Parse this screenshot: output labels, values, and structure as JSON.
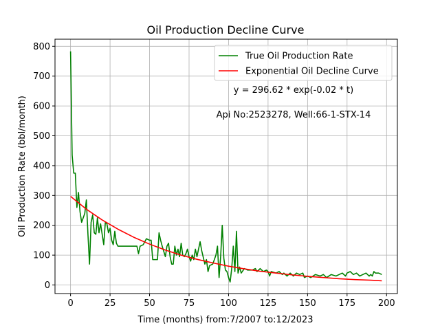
{
  "chart_data": {
    "type": "line",
    "title": "Oil Production Decline Curve",
    "xlabel": "Time (months) from:7/2007 to:12/2023",
    "ylabel": "Oil Production Rate (bbl/month)",
    "xlim": [
      -9.85,
      206.85
    ],
    "ylim": [
      -28.75,
      823.75
    ],
    "xticks": [
      0,
      25,
      50,
      75,
      100,
      125,
      150,
      175,
      200
    ],
    "yticks": [
      0,
      100,
      200,
      300,
      400,
      500,
      600,
      700,
      800
    ],
    "grid": true,
    "legend": "upper right",
    "annotations": [
      "y = 296.62 * exp(-0.02 * t)",
      "Api No:2523278, Well:66-1-STX-14"
    ],
    "series": [
      {
        "name": "True Oil Production Rate",
        "color": "#008000",
        "x": [
          0,
          1,
          2,
          3,
          4,
          5,
          6,
          7,
          8,
          9,
          10,
          11,
          12,
          13,
          14,
          15,
          16,
          17,
          18,
          19,
          20,
          21,
          22,
          23,
          24,
          25,
          26,
          27,
          28,
          29,
          30,
          32,
          35,
          40,
          42,
          43,
          44,
          46,
          48,
          50,
          51,
          52,
          53,
          55,
          56,
          57,
          58,
          60,
          61,
          62,
          63,
          64,
          65,
          66,
          67,
          68,
          69,
          70,
          71,
          72,
          73,
          74,
          75,
          76,
          77,
          78,
          79,
          80,
          82,
          83,
          85,
          86,
          87,
          88,
          90,
          91,
          92,
          93,
          94,
          95,
          96,
          97,
          98,
          99,
          100,
          101,
          102,
          103,
          104,
          105,
          106,
          107,
          108,
          110,
          112,
          115,
          117,
          118,
          120,
          122,
          124,
          125,
          126,
          127,
          130,
          132,
          134,
          135,
          137,
          139,
          141,
          143,
          145,
          147,
          148,
          150,
          152,
          155,
          158,
          160,
          162,
          165,
          168,
          170,
          172,
          174,
          175,
          177,
          179,
          181,
          183,
          185,
          187,
          189,
          190,
          191,
          192,
          193,
          195,
          197
        ],
        "values": [
          783,
          435,
          375,
          375,
          260,
          310,
          245,
          210,
          225,
          240,
          285,
          170,
          70,
          210,
          235,
          175,
          170,
          225,
          175,
          205,
          170,
          135,
          210,
          205,
          175,
          190,
          150,
          135,
          180,
          140,
          130,
          130,
          130,
          130,
          130,
          105,
          130,
          135,
          155,
          150,
          150,
          85,
          85,
          85,
          175,
          150,
          130,
          95,
          130,
          140,
          95,
          70,
          70,
          130,
          100,
          120,
          95,
          140,
          100,
          95,
          105,
          120,
          95,
          80,
          100,
          85,
          120,
          95,
          145,
          115,
          70,
          85,
          45,
          65,
          70,
          85,
          100,
          130,
          25,
          95,
          200,
          90,
          50,
          45,
          25,
          10,
          55,
          130,
          45,
          180,
          40,
          60,
          40,
          55,
          50,
          50,
          55,
          45,
          55,
          45,
          50,
          45,
          30,
          45,
          40,
          45,
          35,
          40,
          30,
          40,
          30,
          40,
          35,
          40,
          25,
          30,
          25,
          35,
          30,
          35,
          25,
          35,
          30,
          35,
          40,
          30,
          40,
          45,
          35,
          40,
          30,
          35,
          40,
          30,
          35,
          30,
          45,
          40,
          40,
          35
        ]
      },
      {
        "name": "Exponential Oil Decline Curve",
        "color": "#ff0000",
        "x": [
          0,
          10,
          20,
          30,
          40,
          50,
          60,
          70,
          80,
          90,
          100,
          110,
          120,
          130,
          140,
          150,
          160,
          170,
          180,
          190,
          197
        ],
        "values": [
          297,
          254,
          218,
          187,
          160,
          137,
          117,
          100,
          86,
          74,
          63,
          54,
          46,
          40,
          34,
          29,
          25,
          21,
          18,
          16,
          14
        ]
      }
    ]
  }
}
